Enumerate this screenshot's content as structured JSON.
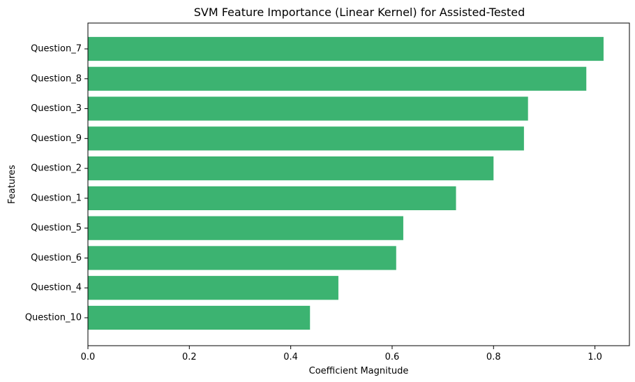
{
  "chart_data": {
    "type": "bar",
    "orientation": "horizontal",
    "title": "SVM Feature Importance (Linear Kernel) for Assisted-Tested",
    "xlabel": "Coefficient Magnitude",
    "ylabel": "Features",
    "categories": [
      "Question_7",
      "Question_8",
      "Question_3",
      "Question_9",
      "Question_2",
      "Question_1",
      "Question_5",
      "Question_6",
      "Question_4",
      "Question_10"
    ],
    "values": [
      1.017,
      0.983,
      0.868,
      0.86,
      0.8,
      0.726,
      0.622,
      0.608,
      0.494,
      0.438
    ],
    "xlim": [
      0,
      1.068
    ],
    "xticks": [
      "0.0",
      "0.2",
      "0.4",
      "0.6",
      "0.8",
      "1.0"
    ],
    "xtick_values": [
      0,
      0.2,
      0.4,
      0.6,
      0.8,
      1.0
    ],
    "bar_color": "#3cb371",
    "grid": false,
    "legend": "none"
  }
}
